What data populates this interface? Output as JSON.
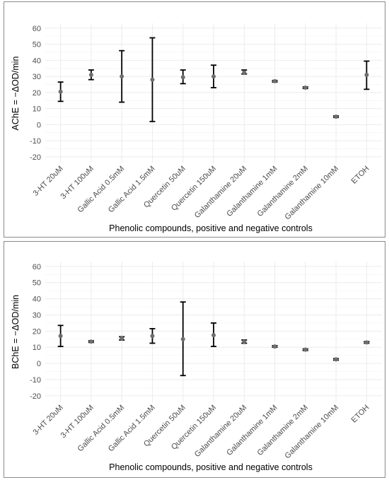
{
  "chart_data": [
    {
      "type": "scatter",
      "subtype": "point-with-error-bars",
      "xlabel": "Phenolic compounds, positive and negative controls",
      "ylabel": "AChE = −ΔOD/min",
      "categories": [
        "3-HT 20uM",
        "3-HT 100uM",
        "Gallic Acid 0.5mM",
        "Gallic Acid 1.5mM",
        "Quercetin 50uM",
        "Quercetin 150uM",
        "Galanthamine 20uM",
        "Galanthamine 1mM",
        "Galanthamine 2mM",
        "Galanthamine 10mM",
        "ETOH"
      ],
      "values": [
        20.5,
        31,
        30,
        28,
        29.5,
        30,
        32.5,
        27,
        23,
        5,
        31
      ],
      "error_low": [
        14.5,
        28,
        14,
        2,
        25.5,
        23,
        31.5,
        26.5,
        22.5,
        4.5,
        22
      ],
      "error_high": [
        26.5,
        34,
        46,
        54,
        34,
        37,
        34,
        27.5,
        23.5,
        5.5,
        39.5
      ],
      "ylim": [
        -24,
        63
      ],
      "yticks": [
        -20,
        -10,
        0,
        10,
        20,
        30,
        40,
        50,
        60
      ],
      "grid": true
    },
    {
      "type": "scatter",
      "subtype": "point-with-error-bars",
      "xlabel": "Phenolic compounds, positive and negative controls",
      "ylabel": "BChE = −ΔOD/min",
      "categories": [
        "3-HT 20uM",
        "3-HT 100uM",
        "Gallic Acid 0.5mM",
        "Gallic Acid 1.5mM",
        "Quercetin 50uM",
        "Quercetin 150uM",
        "Galanthamine 20uM",
        "Galanthamine 1mM",
        "Galanthamine 2mM",
        "Galanthamine 10mM",
        "ETOH"
      ],
      "values": [
        17,
        13.5,
        15.5,
        17,
        15,
        17.5,
        13.5,
        10.5,
        8.5,
        2.5,
        13
      ],
      "error_low": [
        10.5,
        13,
        14.5,
        12.5,
        -7.5,
        10.5,
        12.5,
        10,
        8,
        2,
        12.5
      ],
      "error_high": [
        23.5,
        14,
        16.5,
        21.5,
        38,
        25,
        14.5,
        11,
        9,
        3,
        13.5
      ],
      "ylim": [
        -24,
        63
      ],
      "yticks": [
        -20,
        -10,
        0,
        10,
        20,
        30,
        40,
        50,
        60
      ],
      "grid": true
    }
  ],
  "colors": {
    "point": "#6e6e6e",
    "errorbar": "#000000",
    "grid": "#ebebeb",
    "panel_border": "#8a8a8a"
  }
}
